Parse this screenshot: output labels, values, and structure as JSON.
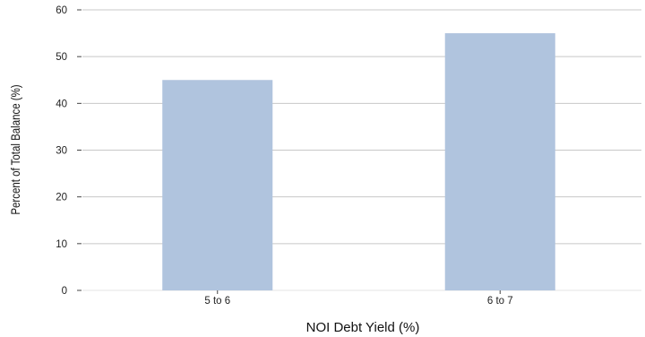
{
  "chart_data": {
    "type": "bar",
    "categories": [
      "5 to 6",
      "6 to 7"
    ],
    "values": [
      45,
      55
    ],
    "xlabel": "NOI Debt Yield (%)",
    "ylabel": "Percent of Total Balance (%)",
    "ylim": [
      0,
      60
    ],
    "yticks": [
      0,
      10,
      20,
      30,
      40,
      50,
      60
    ],
    "grid": true,
    "bar_color": "#b0c4de",
    "grid_color": "#c8c8c8"
  }
}
